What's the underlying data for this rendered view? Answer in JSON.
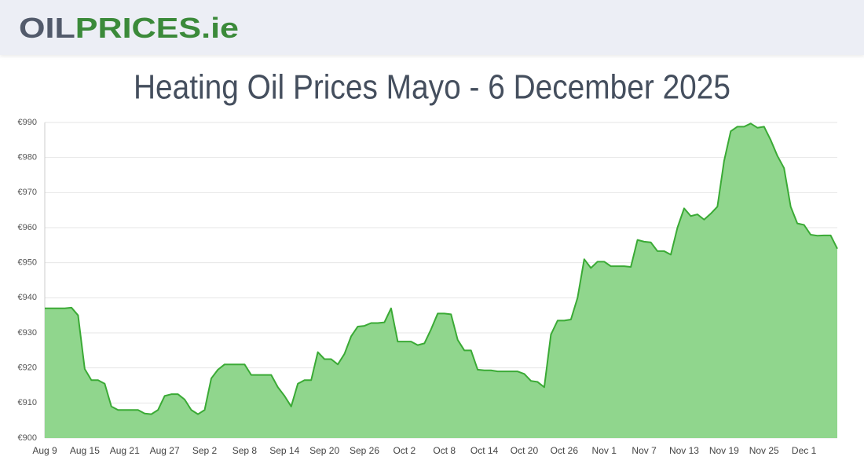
{
  "header": {
    "logo": [
      "OIL",
      "PRICES",
      ".ie"
    ]
  },
  "chart_data": {
    "type": "area",
    "title": "Heating Oil Prices Mayo - 6 December 2025",
    "categories": [
      "Aug 9",
      null,
      null,
      null,
      null,
      null,
      "Aug 15",
      null,
      null,
      null,
      null,
      null,
      "Aug 21",
      null,
      null,
      null,
      null,
      null,
      "Aug 27",
      null,
      null,
      null,
      null,
      null,
      "Sep 2",
      null,
      null,
      null,
      null,
      null,
      "Sep 8",
      null,
      null,
      null,
      null,
      null,
      "Sep 14",
      null,
      null,
      null,
      null,
      null,
      "Sep 20",
      null,
      null,
      null,
      null,
      null,
      "Sep 26",
      null,
      null,
      null,
      null,
      null,
      "Oct 2",
      null,
      null,
      null,
      null,
      null,
      "Oct 8",
      null,
      null,
      null,
      null,
      null,
      "Oct 14",
      null,
      null,
      null,
      null,
      null,
      "Oct 20",
      null,
      null,
      null,
      null,
      null,
      "Oct 26",
      null,
      null,
      null,
      null,
      null,
      "Nov 1",
      null,
      null,
      null,
      null,
      null,
      "Nov 7",
      null,
      null,
      null,
      null,
      null,
      "Nov 13",
      null,
      null,
      null,
      null,
      null,
      "Nov 19",
      null,
      null,
      null,
      null,
      null,
      "Nov 25",
      null,
      null,
      null,
      null,
      null,
      "Dec 1",
      null,
      null,
      null,
      null,
      null
    ],
    "values": [
      937,
      937,
      937,
      937,
      937.2,
      935,
      919.7,
      916.5,
      916.5,
      915.5,
      909,
      908,
      908,
      908,
      908,
      907,
      906.8,
      908,
      912,
      912.5,
      912.5,
      911,
      908,
      906.8,
      908,
      917,
      919.5,
      921,
      921,
      921,
      921,
      918,
      918,
      918,
      918,
      914.5,
      912,
      909,
      915.5,
      916.5,
      916.5,
      924.5,
      922.5,
      922.5,
      921,
      924,
      929,
      931.8,
      932,
      932.8,
      932.8,
      933,
      937,
      927.5,
      927.5,
      927.5,
      926.5,
      927,
      931,
      935.5,
      935.5,
      935.3,
      928,
      925,
      925,
      919.5,
      919.3,
      919.3,
      919,
      919,
      919,
      919,
      918.3,
      916.3,
      916,
      914.5,
      929.5,
      933.5,
      933.5,
      933.8,
      940,
      951,
      948.5,
      950.3,
      950.3,
      949,
      949,
      949,
      948.8,
      956.5,
      956,
      955.8,
      953.3,
      953.3,
      952.3,
      960,
      965.5,
      963.3,
      963.8,
      962.3,
      964,
      966,
      979,
      987.5,
      988.8,
      988.8,
      989.7,
      988.5,
      988.8,
      985,
      980.5,
      977,
      966,
      961.2,
      960.8,
      958,
      957.7,
      957.8,
      957.8,
      954
    ],
    "color": "#3aaa35",
    "area_color": "#90d68d",
    "ylim": [
      900,
      990
    ],
    "yticks": [
      {
        "value": 900,
        "label": "€900"
      },
      {
        "value": 910,
        "label": "€910"
      },
      {
        "value": 920,
        "label": "€920"
      },
      {
        "value": 930,
        "label": "€930"
      },
      {
        "value": 940,
        "label": "€940"
      },
      {
        "value": 950,
        "label": "€950"
      },
      {
        "value": 960,
        "label": "€960"
      },
      {
        "value": 970,
        "label": "€970"
      },
      {
        "value": 980,
        "label": "€980"
      },
      {
        "value": 990,
        "label": "€990"
      }
    ],
    "grid": true
  }
}
